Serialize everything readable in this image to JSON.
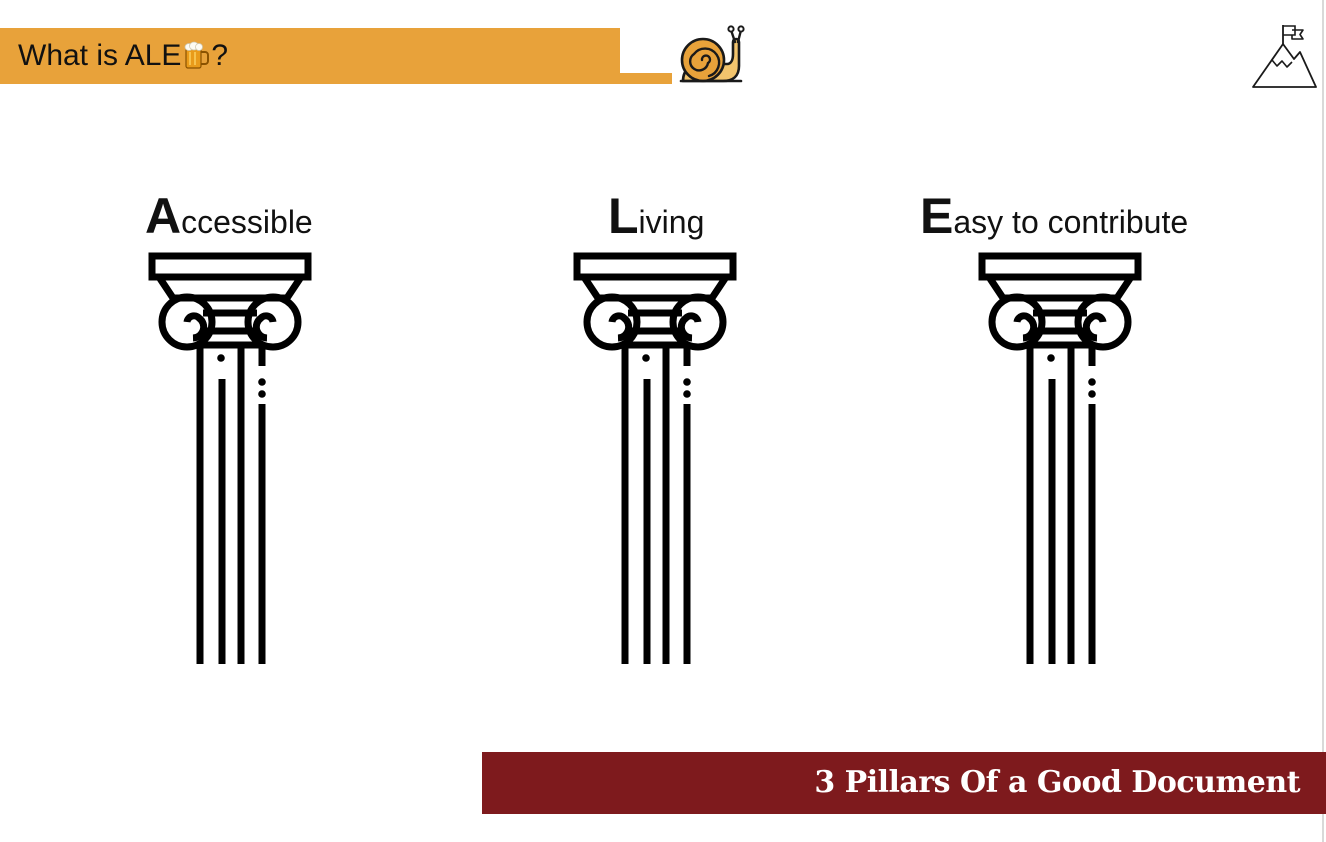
{
  "header": {
    "title_prefix": "What is ALE",
    "title_suffix": "?",
    "accent_color": "#e8a23a",
    "icons": [
      "beer-icon",
      "snail-icon",
      "summit-flag-icon"
    ]
  },
  "pillars": [
    {
      "initial": "A",
      "rest": "ccessible",
      "icon": "ionic-column-icon"
    },
    {
      "initial": "L",
      "rest": "iving",
      "icon": "ionic-column-icon"
    },
    {
      "initial": "E",
      "rest": "asy to contribute",
      "icon": "ionic-column-icon"
    }
  ],
  "footer": {
    "banner_text": "3 Pillars Of a Good Document",
    "banner_color": "#7e1a1d"
  }
}
